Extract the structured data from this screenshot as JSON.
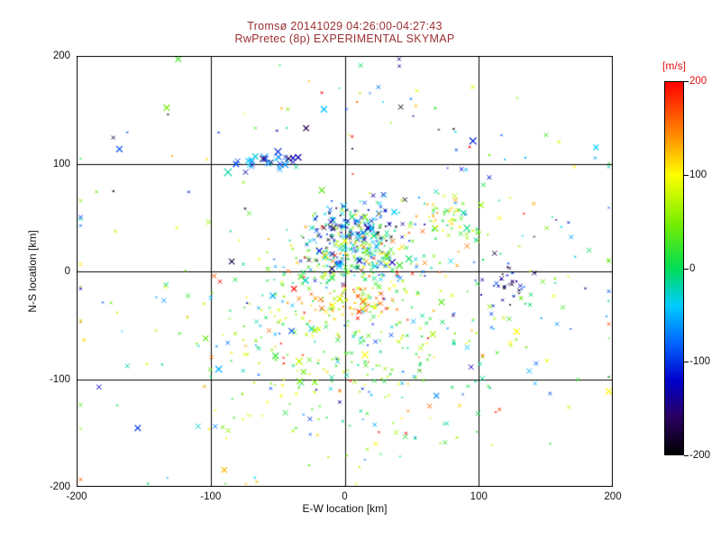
{
  "colors": {
    "title": "#9b3030",
    "colorbar_label": "#e01010",
    "top_tick": "#e01010",
    "text": "#111111",
    "axis": "#000000",
    "background": "#ffffff"
  },
  "chart_data": {
    "type": "scatter",
    "title": "Tromsø 20141029 04:26:00-04:27:43",
    "subtitle": "RwPretec (8p) EXPERIMENTAL SKYMAP",
    "xlabel": "E-W location [km]",
    "ylabel": "N-S location [km]",
    "xlim": [
      -200,
      200
    ],
    "ylim": [
      -200,
      200
    ],
    "xticks": [
      -200,
      -100,
      0,
      100,
      200
    ],
    "yticks": [
      -200,
      -100,
      0,
      100,
      200
    ],
    "grid_lines": [
      -100,
      0,
      100
    ],
    "grid": true,
    "marker": "x",
    "colorbar": {
      "label": "[m/s]",
      "min": -200,
      "max": 200,
      "ticks": [
        200,
        100,
        0,
        -100,
        -200
      ],
      "gradient": [
        {
          "t": 0.0,
          "c": "#000000"
        },
        {
          "t": 0.1,
          "c": "#2a0060"
        },
        {
          "t": 0.2,
          "c": "#0000cc"
        },
        {
          "t": 0.3,
          "c": "#0066ff"
        },
        {
          "t": 0.4,
          "c": "#00ccff"
        },
        {
          "t": 0.5,
          "c": "#00dd55"
        },
        {
          "t": 0.62,
          "c": "#77ee00"
        },
        {
          "t": 0.75,
          "c": "#ffff00"
        },
        {
          "t": 0.86,
          "c": "#ff8800"
        },
        {
          "t": 1.0,
          "c": "#ff0000"
        }
      ]
    },
    "seed": 20141029,
    "clusters": [
      {
        "name": "upper-left-cyan-streak",
        "cx": -62,
        "cy": 101,
        "sx": 16,
        "sy": 4,
        "n": 34,
        "v": -75,
        "vs": 45,
        "smin": 2.5,
        "smax": 4.5
      },
      {
        "name": "upper-sparse-band",
        "cx": 0,
        "cy": 148,
        "sx": 75,
        "sy": 26,
        "n": 40,
        "v": 0,
        "vs": 110
      },
      {
        "name": "central-dense-upper",
        "cx": 8,
        "cy": 38,
        "sx": 20,
        "sy": 14,
        "n": 210,
        "v": -55,
        "vs": 85
      },
      {
        "name": "central-core",
        "cx": 8,
        "cy": 10,
        "sx": 24,
        "sy": 13,
        "n": 190,
        "v": 5,
        "vs": 75
      },
      {
        "name": "right-green-cluster",
        "cx": 76,
        "cy": 48,
        "sx": 14,
        "sy": 13,
        "n": 55,
        "v": 55,
        "vs": 75
      },
      {
        "name": "right-dark-knot",
        "cx": 122,
        "cy": -10,
        "sx": 8,
        "sy": 9,
        "n": 32,
        "v": -150,
        "vs": 35
      },
      {
        "name": "warm-core",
        "cx": 12,
        "cy": -28,
        "sx": 16,
        "sy": 11,
        "n": 75,
        "v": 125,
        "vs": 45
      },
      {
        "name": "lower-broad-field",
        "cx": 0,
        "cy": -62,
        "sx": 62,
        "sy": 40,
        "n": 320,
        "v": 45,
        "vs": 70
      },
      {
        "name": "wide-sparse-field",
        "cx": 0,
        "cy": -15,
        "sx": 115,
        "sy": 85,
        "n": 185,
        "v": 25,
        "vs": 90
      },
      {
        "name": "bottom-sparse",
        "cx": 0,
        "cy": -150,
        "sx": 85,
        "sy": 25,
        "n": 40,
        "v": 35,
        "vs": 80
      },
      {
        "name": "right-sparse",
        "cx": 135,
        "cy": 25,
        "sx": 38,
        "sy": 55,
        "n": 45,
        "v": -10,
        "vs": 100
      }
    ]
  }
}
